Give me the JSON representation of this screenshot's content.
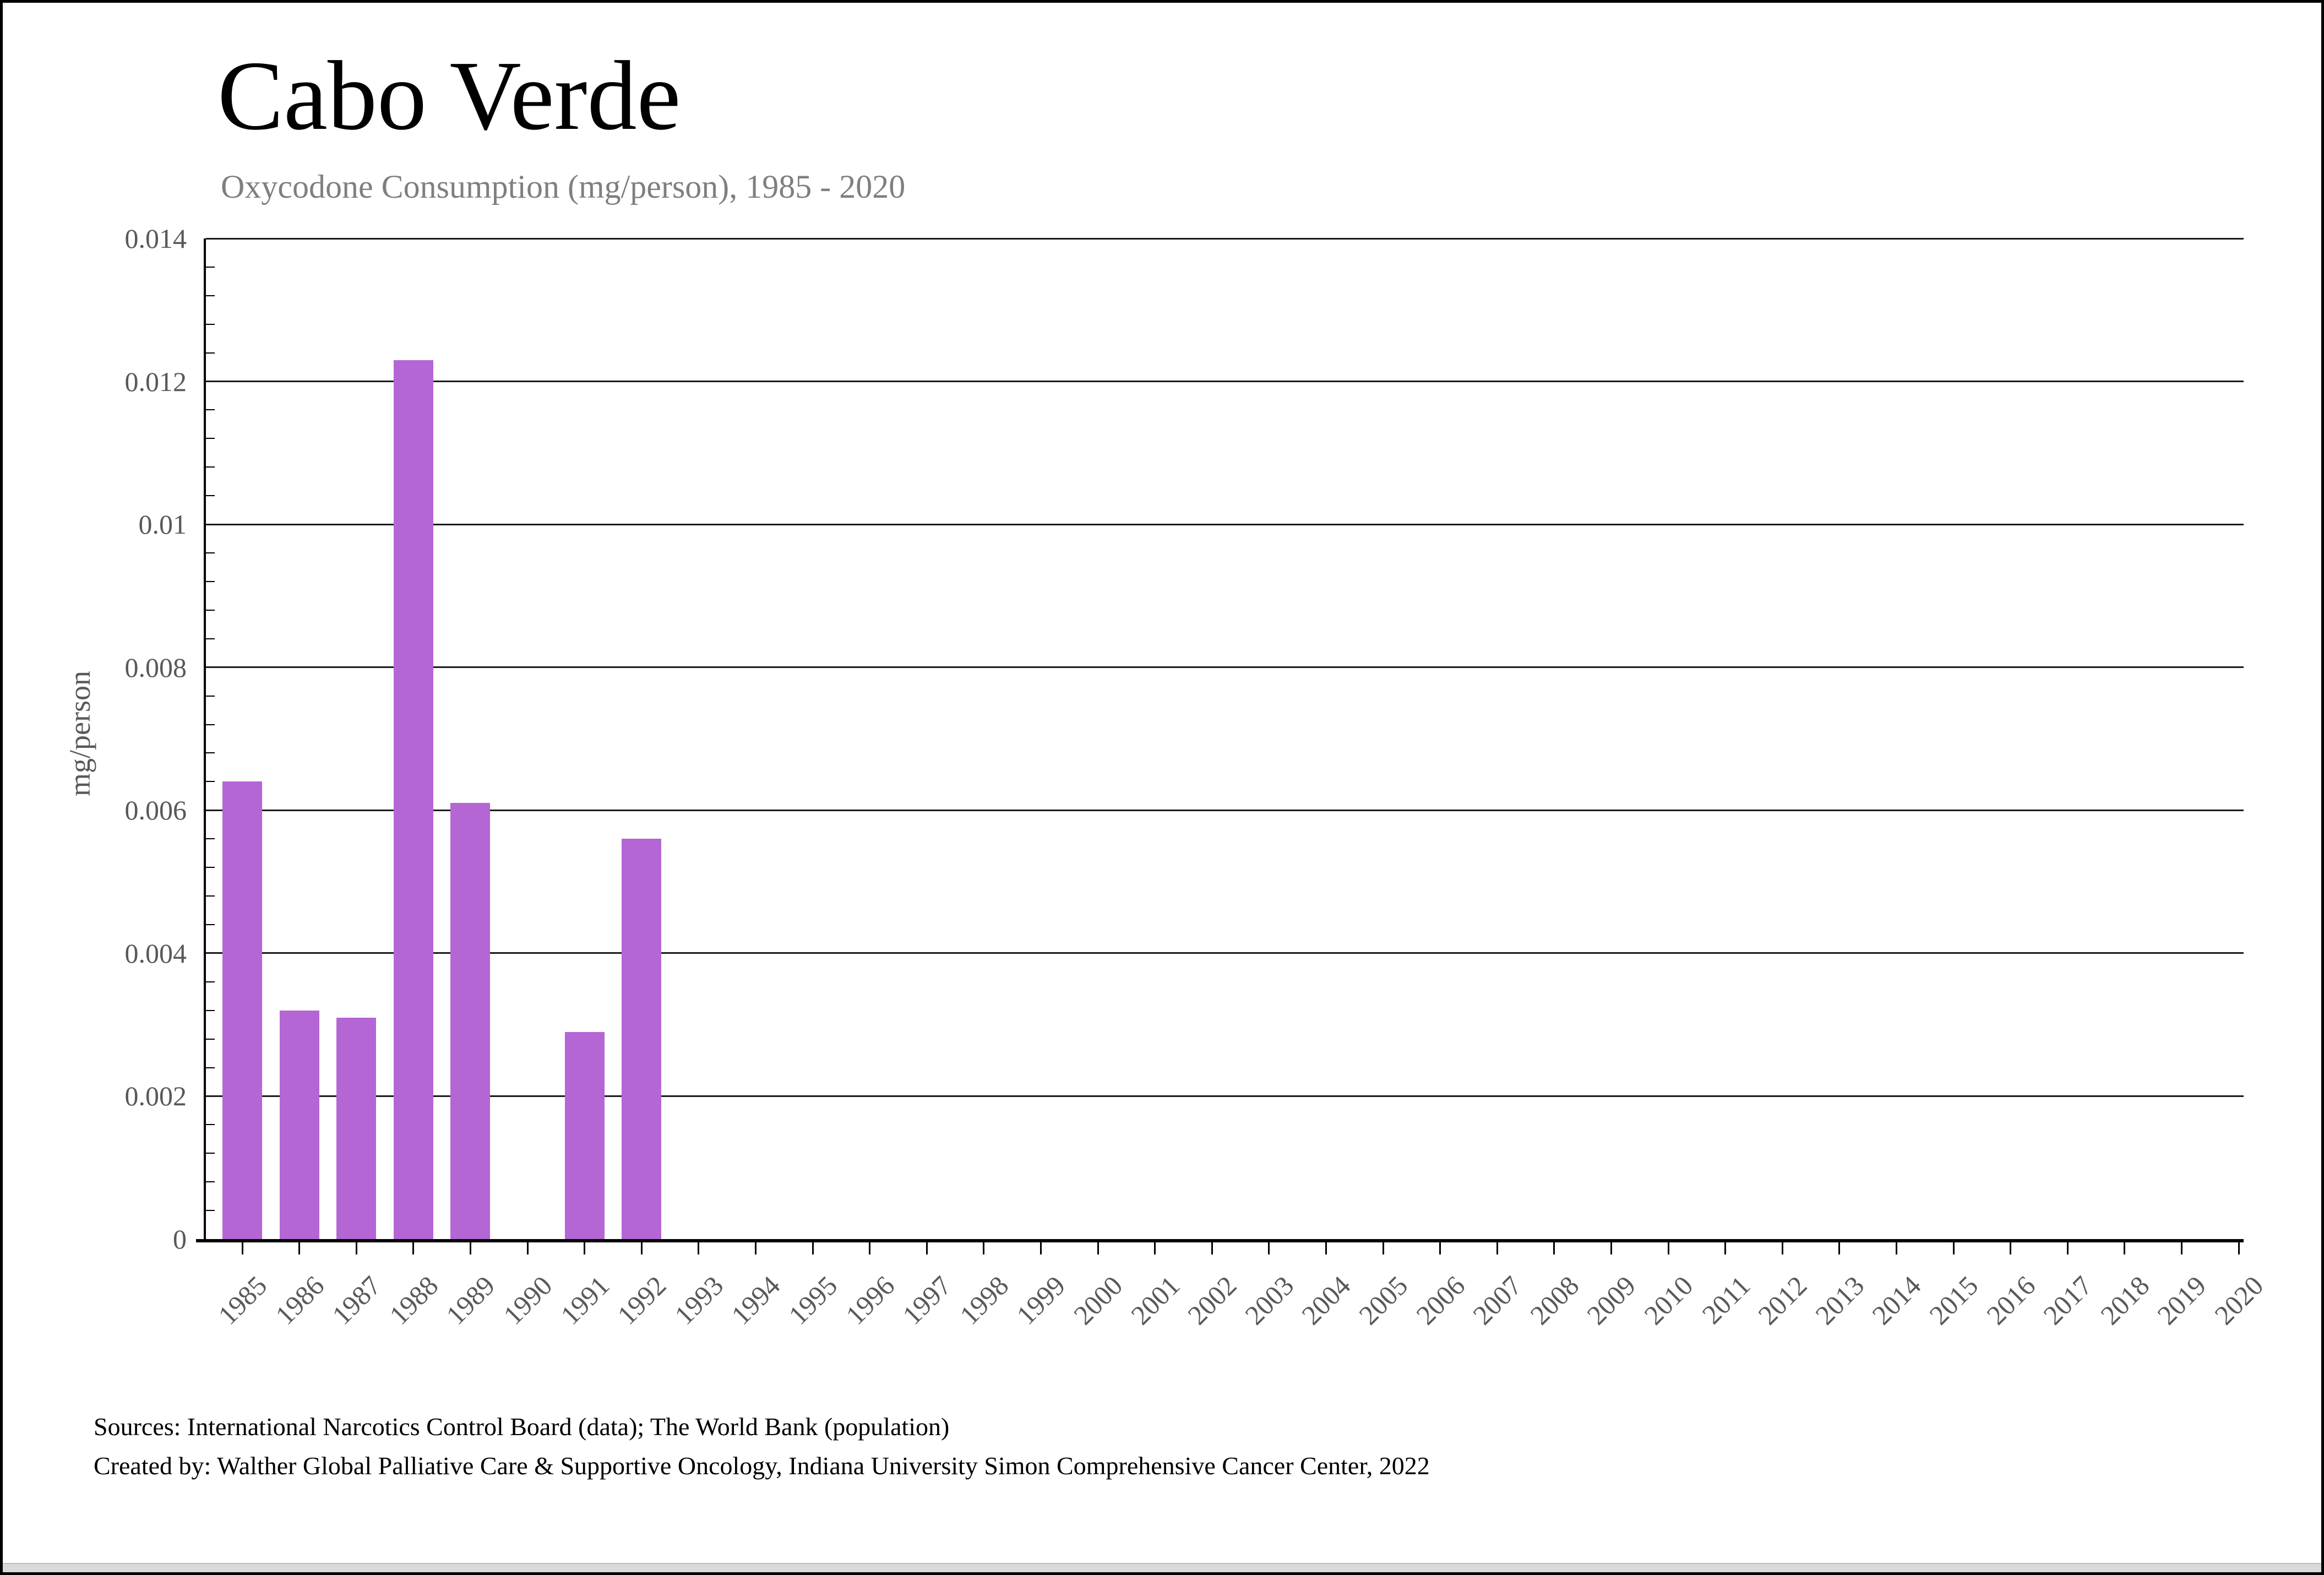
{
  "header": {
    "title": "Cabo Verde",
    "subtitle": "Oxycodone Consumption (mg/person), 1985 - 2020"
  },
  "chart_data": {
    "type": "bar",
    "title": "Cabo Verde",
    "subtitle": "Oxycodone Consumption (mg/person), 1985 - 2020",
    "categories": [
      "1985",
      "1986",
      "1987",
      "1988",
      "1989",
      "1990",
      "1991",
      "1992",
      "1993",
      "1994",
      "1995",
      "1996",
      "1997",
      "1998",
      "1999",
      "2000",
      "2001",
      "2002",
      "2003",
      "2004",
      "2005",
      "2006",
      "2007",
      "2008",
      "2009",
      "2010",
      "2011",
      "2012",
      "2013",
      "2014",
      "2015",
      "2016",
      "2017",
      "2018",
      "2019",
      "2020"
    ],
    "values": [
      0.0064,
      0.0032,
      0.0031,
      0.0123,
      0.0061,
      0,
      0.0029,
      0.0056,
      0,
      0,
      0,
      0,
      0,
      0,
      0,
      0,
      0,
      0,
      0,
      0,
      0,
      0,
      0,
      0,
      0,
      0,
      0,
      0,
      0,
      0,
      0,
      0,
      0,
      0,
      0,
      0
    ],
    "xlabel": "",
    "ylabel": "mg/person",
    "ylim": [
      0,
      0.014
    ],
    "ytick_step": 0.002,
    "ytick_labels": [
      "0",
      "0.002",
      "0.004",
      "0.006",
      "0.008",
      "0.01",
      "0.012",
      "0.014"
    ],
    "minor_ticks_per_major": 5,
    "grid": "horizontal-major",
    "legend": "none",
    "bar_color": "#b466d4"
  },
  "colors": {
    "bar": "#b466d4",
    "gridline": "#1a1a1a",
    "axis_text": "#595959",
    "subtitle_text": "#7f7f7f",
    "frame": "#000000"
  },
  "footer": {
    "line1": "Sources: International Narcotics Control Board (data); The World Bank (population)",
    "line2": "Created by: Walther Global Palliative Care & Supportive Oncology, Indiana University Simon Comprehensive Cancer Center, 2022"
  }
}
